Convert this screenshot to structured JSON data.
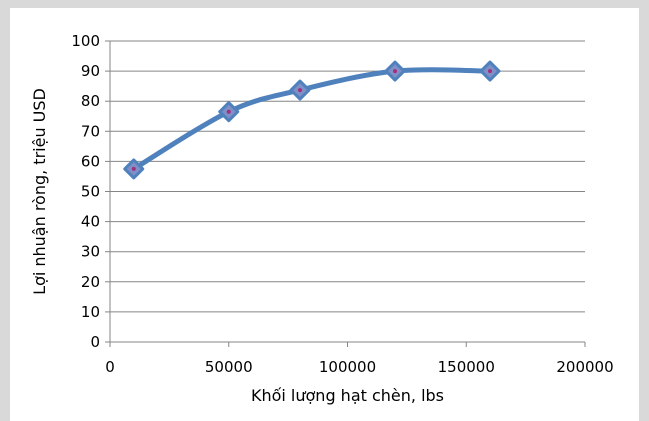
{
  "chart_data": {
    "type": "scatter",
    "style": "smooth line with markers",
    "title": "",
    "xlabel": "Khối lượng hạt chèn, lbs",
    "ylabel": "Lợi nhuận ròng, triệu USD",
    "xlim": [
      0,
      200000
    ],
    "ylim": [
      0,
      100
    ],
    "x_ticks": [
      0,
      50000,
      100000,
      150000,
      200000
    ],
    "y_ticks": [
      0,
      10,
      20,
      30,
      40,
      50,
      60,
      70,
      80,
      90,
      100
    ],
    "grid": "horizontal",
    "legend": "none",
    "series": [
      {
        "x": [
          10000,
          50000,
          80000,
          120000,
          160000
        ],
        "y": [
          57.5,
          76.5,
          83.7,
          90.0,
          90.0
        ]
      }
    ],
    "colors": {
      "line": "#4f81bd",
      "marker_fill": "#7f8fc8",
      "marker_center": "#a0307a",
      "grid": "#868686"
    }
  }
}
